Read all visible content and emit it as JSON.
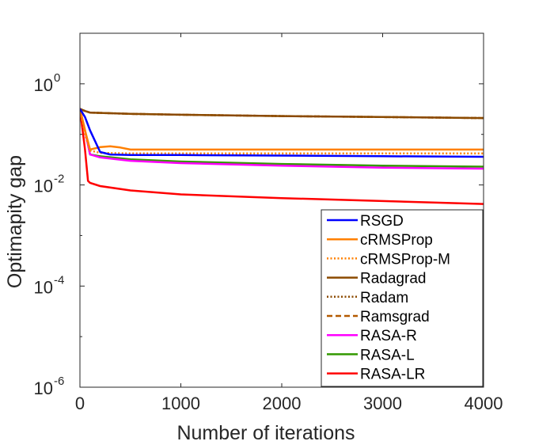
{
  "chart_data": {
    "type": "line",
    "xlabel": "Number of iterations",
    "ylabel": "Optimapity gap",
    "xlim": [
      0,
      4000
    ],
    "ylim": [
      1e-06,
      10
    ],
    "yscale": "log",
    "grid": false,
    "legend_position": "lower-right",
    "x_ticks": [
      {
        "value": 0,
        "label": "0"
      },
      {
        "value": 1000,
        "label": "1000"
      },
      {
        "value": 2000,
        "label": "2000"
      },
      {
        "value": 3000,
        "label": "3000"
      },
      {
        "value": 4000,
        "label": "4000"
      }
    ],
    "y_ticks": [
      {
        "value": 1,
        "base": "10",
        "exp": "0"
      },
      {
        "value": 0.01,
        "base": "10",
        "exp": "-2"
      },
      {
        "value": 0.0001,
        "base": "10",
        "exp": "-4"
      },
      {
        "value": 1e-06,
        "base": "10",
        "exp": "-6"
      }
    ],
    "series": [
      {
        "name": "RSGD",
        "color": "#0000ff",
        "dash": "solid",
        "x": [
          0,
          50,
          100,
          200,
          300,
          500,
          1000,
          2000,
          3000,
          4000
        ],
        "y": [
          0.32,
          0.22,
          0.12,
          0.045,
          0.04,
          0.039,
          0.039,
          0.038,
          0.037,
          0.036
        ]
      },
      {
        "name": "cRMSProp",
        "color": "#ff8000",
        "dash": "solid",
        "x": [
          0,
          50,
          100,
          200,
          300,
          400,
          500,
          1000,
          2000,
          3000,
          4000
        ],
        "y": [
          0.32,
          0.12,
          0.05,
          0.056,
          0.058,
          0.055,
          0.05,
          0.05,
          0.05,
          0.05,
          0.05
        ]
      },
      {
        "name": "cRMSProp-M",
        "color": "#ff8000",
        "dash": "dotted",
        "x": [
          0,
          50,
          100,
          200,
          500,
          1000,
          2000,
          3000,
          4000
        ],
        "y": [
          0.32,
          0.1,
          0.048,
          0.043,
          0.042,
          0.042,
          0.042,
          0.042,
          0.042
        ]
      },
      {
        "name": "Radagrad",
        "color": "#8b4a00",
        "dash": "solid",
        "x": [
          0,
          50,
          100,
          500,
          1000,
          2000,
          3000,
          4000
        ],
        "y": [
          0.32,
          0.29,
          0.27,
          0.255,
          0.245,
          0.23,
          0.22,
          0.21
        ]
      },
      {
        "name": "Radam",
        "color": "#8b4a00",
        "dash": "dotted",
        "x": [
          0,
          50,
          100,
          500,
          1000,
          2000,
          3000,
          4000
        ],
        "y": [
          0.32,
          0.29,
          0.27,
          0.255,
          0.245,
          0.23,
          0.22,
          0.21
        ]
      },
      {
        "name": "Ramsgrad",
        "color": "#b35a00",
        "dash": "dashed",
        "x": [
          0,
          50,
          100,
          500,
          1000,
          2000,
          3000,
          4000
        ],
        "y": [
          0.32,
          0.29,
          0.27,
          0.255,
          0.245,
          0.23,
          0.22,
          0.21
        ]
      },
      {
        "name": "RASA-R",
        "color": "#ff00ff",
        "dash": "solid",
        "x": [
          0,
          50,
          100,
          200,
          500,
          1000,
          2000,
          3000,
          4000
        ],
        "y": [
          0.32,
          0.12,
          0.04,
          0.035,
          0.03,
          0.027,
          0.024,
          0.022,
          0.021
        ]
      },
      {
        "name": "RASA-L",
        "color": "#339900",
        "dash": "solid",
        "x": [
          0,
          50,
          100,
          200,
          500,
          1000,
          2000,
          3000,
          4000
        ],
        "y": [
          0.32,
          0.12,
          0.04,
          0.037,
          0.032,
          0.029,
          0.026,
          0.024,
          0.023
        ]
      },
      {
        "name": "RASA-LR",
        "color": "#ff0000",
        "dash": "solid",
        "x": [
          0,
          50,
          80,
          100,
          200,
          500,
          1000,
          2000,
          3000,
          4000
        ],
        "y": [
          0.32,
          0.05,
          0.012,
          0.011,
          0.0095,
          0.0078,
          0.0065,
          0.0055,
          0.0048,
          0.0042
        ]
      }
    ]
  }
}
